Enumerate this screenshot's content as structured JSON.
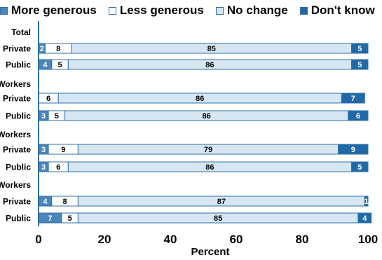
{
  "chart_data": {
    "type": "bar",
    "stacked": true,
    "orientation": "horizontal",
    "legend_position": "top",
    "grid": false,
    "xlabel": "Percent",
    "xlim": [
      0,
      100
    ],
    "x_ticks": [
      "0",
      "20",
      "40",
      "60",
      "80",
      "100"
    ],
    "group_labels": [
      "Total",
      "Workers",
      "Workers",
      "Workers"
    ],
    "categories": [
      "Private",
      "Public",
      "Private",
      "Public",
      "Private",
      "Public",
      "Private",
      "Public"
    ],
    "series": [
      {
        "name": "More generous",
        "color": "#4a86b8",
        "values": [
          2,
          4,
          0,
          3,
          3,
          3,
          4,
          7
        ]
      },
      {
        "name": "Less generous",
        "color": "#ffffff",
        "values": [
          8,
          5,
          6,
          5,
          9,
          6,
          8,
          5
        ]
      },
      {
        "name": "No change",
        "color": "#d6e6f2",
        "values": [
          85,
          86,
          86,
          86,
          79,
          86,
          87,
          85
        ]
      },
      {
        "name": "Don't know",
        "color": "#1f6aa6",
        "values": [
          5,
          5,
          7,
          6,
          9,
          5,
          1,
          4
        ]
      }
    ],
    "outline_color": "#2f70a8",
    "label_colors": [
      "#ffffff",
      "#000000",
      "#000000",
      "#ffffff"
    ]
  }
}
